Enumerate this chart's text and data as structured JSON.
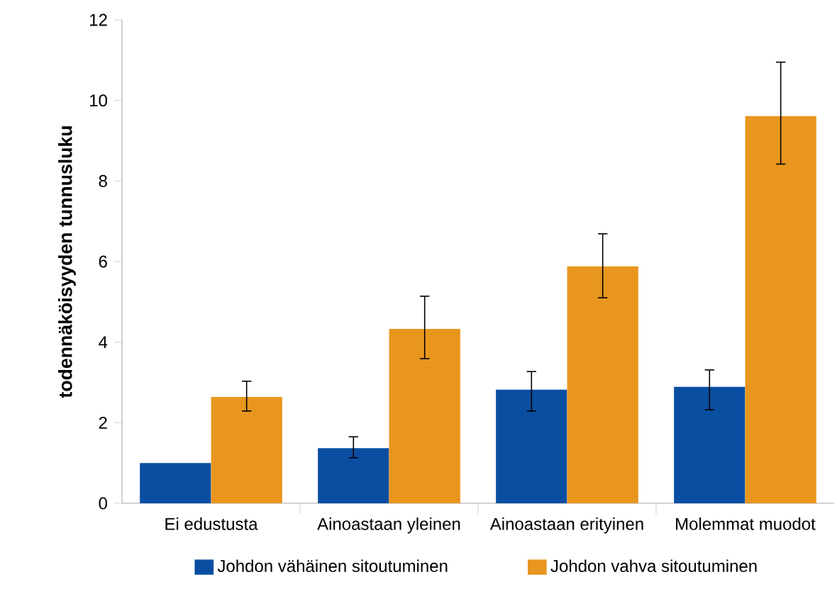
{
  "chart_data": {
    "type": "bar",
    "ylabel": "todennäköisyyden tunnusluku",
    "categories": [
      "Ei edustusta",
      "Ainoastaan yleinen",
      "Ainoastaan erityinen",
      "Molemmat muodot"
    ],
    "series": [
      {
        "name": "Johdon vähäinen sitoutuminen",
        "color": "#0a4ea2",
        "values": [
          1.0,
          1.37,
          2.82,
          2.89
        ],
        "errors": [
          null,
          [
            1.13,
            1.65
          ],
          [
            2.29,
            3.27
          ],
          [
            2.32,
            3.31
          ]
        ]
      },
      {
        "name": "Johdon vahva sitoutuminen",
        "color": "#e8961e",
        "values": [
          2.64,
          4.33,
          5.88,
          9.61
        ],
        "errors": [
          [
            2.29,
            3.03
          ],
          [
            3.59,
            5.14
          ],
          [
            5.1,
            6.69
          ],
          [
            8.42,
            10.95
          ]
        ]
      }
    ],
    "ylim": [
      0,
      12
    ],
    "yticks": [
      0,
      2,
      4,
      6,
      8,
      10,
      12
    ],
    "legend": "bottom",
    "grid": false
  }
}
